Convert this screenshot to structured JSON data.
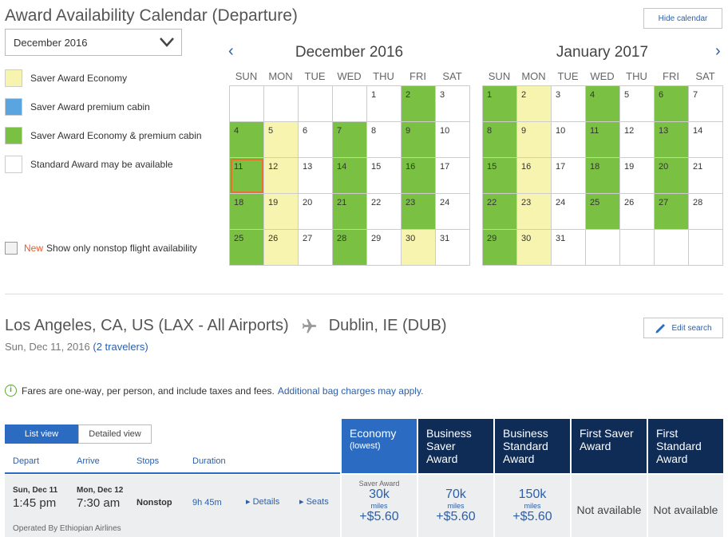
{
  "header": {
    "title": "Award Availability Calendar (Departure)",
    "hide_calendar": "Hide calendar",
    "month_select": "December 2016"
  },
  "legend": [
    {
      "label": "Saver Award Economy",
      "color": "#f7f4b0"
    },
    {
      "label": "Saver Award premium cabin",
      "color": "#5aa5e0"
    },
    {
      "label": "Saver Award Economy & premium cabin",
      "color": "#7ac143"
    },
    {
      "label": "Standard Award may be available",
      "color": "#ffffff"
    }
  ],
  "nonstop": {
    "new_tag": "New",
    "label": "Show only nonstop flight availability"
  },
  "calendar": {
    "dow": [
      "SUN",
      "MON",
      "TUE",
      "WED",
      "THU",
      "FRI",
      "SAT"
    ],
    "months": [
      {
        "title": "December 2016",
        "cells": [
          [
            "",
            ""
          ],
          [
            "",
            ""
          ],
          [
            "",
            ""
          ],
          [
            "",
            ""
          ],
          [
            "1",
            ""
          ],
          [
            "2",
            "g"
          ],
          [
            "3",
            ""
          ],
          [
            "4",
            "g"
          ],
          [
            "5",
            "y"
          ],
          [
            "6",
            ""
          ],
          [
            "7",
            "g"
          ],
          [
            "8",
            ""
          ],
          [
            "9",
            "g"
          ],
          [
            "10",
            ""
          ],
          [
            "11",
            "g sel"
          ],
          [
            "12",
            "y"
          ],
          [
            "13",
            ""
          ],
          [
            "14",
            "g"
          ],
          [
            "15",
            ""
          ],
          [
            "16",
            "g"
          ],
          [
            "17",
            ""
          ],
          [
            "18",
            "g"
          ],
          [
            "19",
            "y"
          ],
          [
            "20",
            ""
          ],
          [
            "21",
            "g"
          ],
          [
            "22",
            ""
          ],
          [
            "23",
            "g"
          ],
          [
            "24",
            ""
          ],
          [
            "25",
            "g"
          ],
          [
            "26",
            "y"
          ],
          [
            "27",
            ""
          ],
          [
            "28",
            "g"
          ],
          [
            "29",
            ""
          ],
          [
            "30",
            "y"
          ],
          [
            "31",
            ""
          ]
        ]
      },
      {
        "title": "January 2017",
        "cells": [
          [
            "1",
            "g"
          ],
          [
            "2",
            "y"
          ],
          [
            "3",
            ""
          ],
          [
            "4",
            "g"
          ],
          [
            "5",
            ""
          ],
          [
            "6",
            "g"
          ],
          [
            "7",
            ""
          ],
          [
            "8",
            "g"
          ],
          [
            "9",
            "y"
          ],
          [
            "10",
            ""
          ],
          [
            "11",
            "g"
          ],
          [
            "12",
            ""
          ],
          [
            "13",
            "g"
          ],
          [
            "14",
            ""
          ],
          [
            "15",
            "g"
          ],
          [
            "16",
            "y"
          ],
          [
            "17",
            ""
          ],
          [
            "18",
            "g"
          ],
          [
            "19",
            ""
          ],
          [
            "20",
            "g"
          ],
          [
            "21",
            ""
          ],
          [
            "22",
            "g"
          ],
          [
            "23",
            "y"
          ],
          [
            "24",
            ""
          ],
          [
            "25",
            "g"
          ],
          [
            "26",
            ""
          ],
          [
            "27",
            "g"
          ],
          [
            "28",
            ""
          ],
          [
            "29",
            "g"
          ],
          [
            "30",
            "y"
          ],
          [
            "31",
            ""
          ],
          [
            "",
            ""
          ],
          [
            "",
            ""
          ],
          [
            "",
            ""
          ],
          [
            "",
            ""
          ]
        ]
      }
    ]
  },
  "route": {
    "from": "Los Angeles, CA, US (LAX - All Airports)",
    "to": "Dublin, IE (DUB)",
    "date": "Sun, Dec 11, 2016",
    "travelers": "(2 travelers)",
    "edit_search": "Edit search"
  },
  "fare_note": {
    "bold": "Fares are one-way",
    "rest": ", per person, and include taxes and fees.",
    "link": "Additional bag charges may apply."
  },
  "views": {
    "list": "List view",
    "detailed": "Detailed view"
  },
  "columns": {
    "depart": "Depart",
    "arrive": "Arrive",
    "stops": "Stops",
    "duration": "Duration"
  },
  "cabins": [
    {
      "line1": "Economy",
      "line2": "(lowest)",
      "line3": ""
    },
    {
      "line1": "Business",
      "line2": "Saver",
      "line3": "Award"
    },
    {
      "line1": "Business",
      "line2": "Standard",
      "line3": "Award"
    },
    {
      "line1": "First Saver",
      "line2": "Award",
      "line3": ""
    },
    {
      "line1": "First",
      "line2": "Standard",
      "line3": "Award"
    }
  ],
  "flight": {
    "depart_date": "Sun, Dec 11",
    "depart_time": "1:45 pm",
    "arrive_date": "Mon, Dec 12",
    "arrive_time": "7:30 am",
    "stops": "Nonstop",
    "duration": "9h 45m",
    "details": "Details",
    "seats": "Seats",
    "operated_by": "Operated By Ethiopian Airlines",
    "fares": [
      {
        "label": "Saver Award",
        "miles": "30k",
        "unit": "miles",
        "tax": "+$5.60"
      },
      {
        "label": "",
        "miles": "70k",
        "unit": "miles",
        "tax": "+$5.60"
      },
      {
        "label": "",
        "miles": "150k",
        "unit": "miles",
        "tax": "+$5.60"
      },
      {
        "na": "Not available"
      },
      {
        "na": "Not available"
      }
    ]
  }
}
